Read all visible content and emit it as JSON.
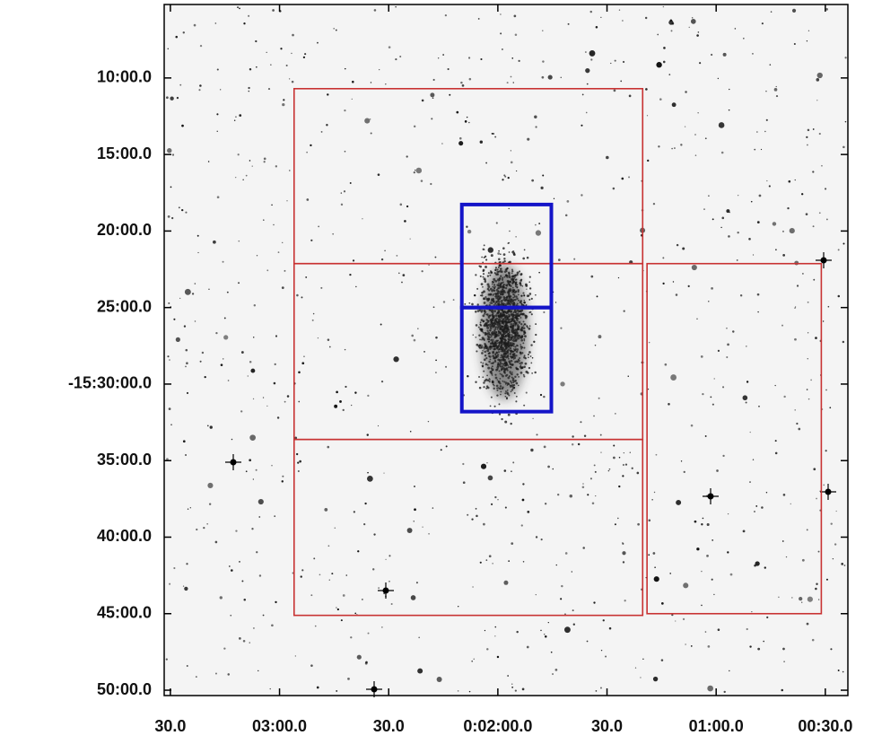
{
  "chart_data": {
    "type": "skymap",
    "xlim": [
      211.7,
      23.8
    ],
    "ylim": [
      5.2,
      50.35
    ],
    "xticks": [
      {
        "value": 210,
        "label": "30.0"
      },
      {
        "value": 180,
        "label": "03:00.0"
      },
      {
        "value": 150,
        "label": "30.0"
      },
      {
        "value": 120,
        "label": "0:02:00.0"
      },
      {
        "value": 90,
        "label": "30.0"
      },
      {
        "value": 60,
        "label": "01:00.0"
      },
      {
        "value": 30,
        "label": "00:30.0"
      }
    ],
    "yticks": [
      {
        "value": 10,
        "label": "10:00.0"
      },
      {
        "value": 15,
        "label": "15:00.0"
      },
      {
        "value": 20,
        "label": "20:00.0"
      },
      {
        "value": 25,
        "label": "25:00.0"
      },
      {
        "value": 30,
        "label": "-15:30:00.0"
      },
      {
        "value": 35,
        "label": "35:00.0"
      },
      {
        "value": 40,
        "label": "40:00.0"
      },
      {
        "value": 45,
        "label": "45:00.0"
      },
      {
        "value": 50,
        "label": "50:00.0"
      }
    ],
    "regions": [
      {
        "color": "#c83232",
        "x": [
          176.0,
          80.2
        ],
        "y": [
          10.7,
          22.13
        ]
      },
      {
        "color": "#c83232",
        "x": [
          176.0,
          80.2
        ],
        "y": [
          22.13,
          33.62
        ]
      },
      {
        "color": "#c83232",
        "x": [
          176.0,
          80.2
        ],
        "y": [
          33.62,
          45.11
        ]
      },
      {
        "color": "#c83232",
        "x": [
          79.0,
          31.1
        ],
        "y": [
          22.13,
          45.0
        ]
      },
      {
        "color": "#1414c8",
        "x": [
          129.9,
          105.3
        ],
        "y": [
          18.27,
          25.0
        ]
      },
      {
        "color": "#1414c8",
        "x": [
          129.9,
          105.3
        ],
        "y": [
          25.0,
          31.8
        ]
      }
    ]
  }
}
